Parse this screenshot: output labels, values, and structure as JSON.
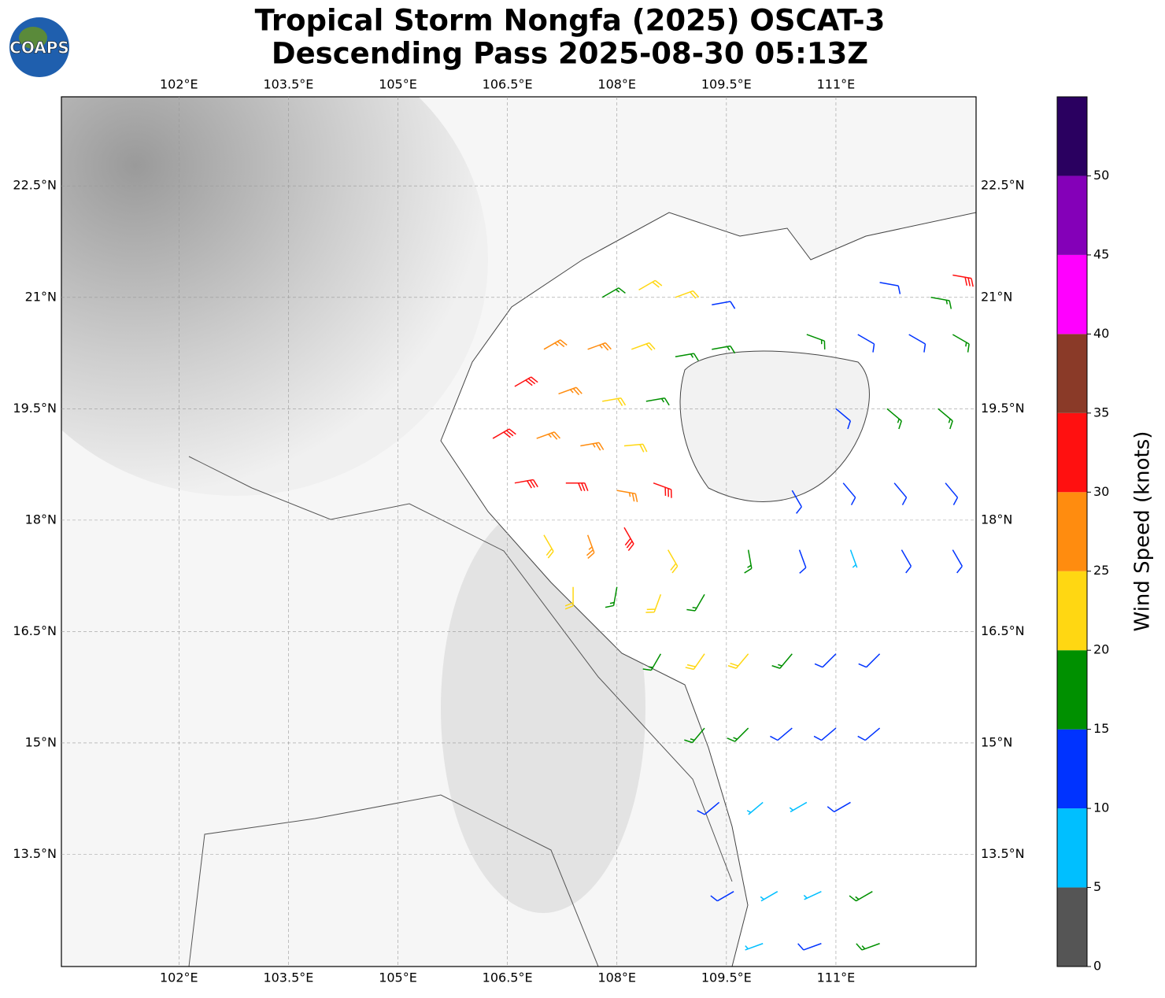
{
  "chart_data": {
    "type": "barbs",
    "logo": "COAPS",
    "title": "Tropical Storm Nongfa (2025) OSCAT-3",
    "subtitle": "Descending Pass 2025-08-30 05:13Z",
    "xlim": [
      100.39,
      112.92
    ],
    "ylim": [
      11.99,
      23.7
    ],
    "xticks": [
      {
        "value": 102,
        "label": "102°E"
      },
      {
        "value": 103.5,
        "label": "103.5°E"
      },
      {
        "value": 105,
        "label": "105°E"
      },
      {
        "value": 106.5,
        "label": "106.5°E"
      },
      {
        "value": 108,
        "label": "108°E"
      },
      {
        "value": 109.5,
        "label": "109.5°E"
      },
      {
        "value": 111,
        "label": "111°E"
      }
    ],
    "yticks": [
      {
        "value": 13.5,
        "label": "13.5°N"
      },
      {
        "value": 15,
        "label": "15°N"
      },
      {
        "value": 16.5,
        "label": "16.5°N"
      },
      {
        "value": 18,
        "label": "18°N"
      },
      {
        "value": 19.5,
        "label": "19.5°N"
      },
      {
        "value": 21,
        "label": "21°N"
      },
      {
        "value": 22.5,
        "label": "22.5°N"
      }
    ],
    "grid": true,
    "colorbar": {
      "label": "Wind Speed (knots)",
      "lim": [
        0,
        55
      ],
      "ticks": [
        0,
        5,
        10,
        15,
        20,
        25,
        30,
        35,
        40,
        45,
        50
      ],
      "bounds": [
        0,
        5,
        10,
        15,
        20,
        25,
        30,
        35,
        40,
        45,
        50,
        55
      ],
      "colors": [
        "#555555",
        "#00bfff",
        "#0033ff",
        "#009000",
        "#ffd712",
        "#ff8c0f",
        "#ff1010",
        "#8a3a28",
        "#ff00ff",
        "#8400b8",
        "#2a0060"
      ]
    },
    "barbs": [
      {
        "lon": 107.8,
        "lat": 21.0,
        "speed": 18,
        "dir": 60
      },
      {
        "lon": 108.3,
        "lat": 21.1,
        "speed": 22,
        "dir": 60
      },
      {
        "lon": 108.8,
        "lat": 21.0,
        "speed": 22,
        "dir": 70
      },
      {
        "lon": 109.3,
        "lat": 20.9,
        "speed": 14,
        "dir": 80
      },
      {
        "lon": 107.0,
        "lat": 20.3,
        "speed": 28,
        "dir": 60
      },
      {
        "lon": 107.6,
        "lat": 20.3,
        "speed": 27,
        "dir": 70
      },
      {
        "lon": 108.2,
        "lat": 20.3,
        "speed": 23,
        "dir": 70
      },
      {
        "lon": 108.8,
        "lat": 20.2,
        "speed": 18,
        "dir": 80
      },
      {
        "lon": 109.3,
        "lat": 20.3,
        "speed": 18,
        "dir": 80
      },
      {
        "lon": 106.6,
        "lat": 19.8,
        "speed": 32,
        "dir": 60
      },
      {
        "lon": 107.2,
        "lat": 19.7,
        "speed": 28,
        "dir": 70
      },
      {
        "lon": 107.8,
        "lat": 19.6,
        "speed": 23,
        "dir": 80
      },
      {
        "lon": 108.4,
        "lat": 19.6,
        "speed": 18,
        "dir": 80
      },
      {
        "lon": 106.3,
        "lat": 19.1,
        "speed": 33,
        "dir": 60
      },
      {
        "lon": 106.9,
        "lat": 19.1,
        "speed": 28,
        "dir": 70
      },
      {
        "lon": 107.5,
        "lat": 19.0,
        "speed": 27,
        "dir": 80
      },
      {
        "lon": 108.1,
        "lat": 19.0,
        "speed": 24,
        "dir": 85
      },
      {
        "lon": 106.6,
        "lat": 18.5,
        "speed": 33,
        "dir": 80
      },
      {
        "lon": 107.3,
        "lat": 18.5,
        "speed": 30,
        "dir": 90
      },
      {
        "lon": 108.0,
        "lat": 18.4,
        "speed": 28,
        "dir": 100
      },
      {
        "lon": 108.5,
        "lat": 18.5,
        "speed": 33,
        "dir": 110
      },
      {
        "lon": 107.0,
        "lat": 17.8,
        "speed": 22,
        "dir": 150
      },
      {
        "lon": 107.6,
        "lat": 17.8,
        "speed": 28,
        "dir": 160
      },
      {
        "lon": 108.1,
        "lat": 17.9,
        "speed": 31,
        "dir": 150
      },
      {
        "lon": 108.7,
        "lat": 17.6,
        "speed": 23,
        "dir": 150
      },
      {
        "lon": 107.4,
        "lat": 17.1,
        "speed": 22,
        "dir": 180
      },
      {
        "lon": 108.0,
        "lat": 17.1,
        "speed": 18,
        "dir": 190
      },
      {
        "lon": 108.6,
        "lat": 17.0,
        "speed": 23,
        "dir": 200
      },
      {
        "lon": 109.2,
        "lat": 17.0,
        "speed": 17,
        "dir": 210
      },
      {
        "lon": 108.6,
        "lat": 16.2,
        "speed": 17,
        "dir": 210
      },
      {
        "lon": 109.2,
        "lat": 16.2,
        "speed": 22,
        "dir": 215
      },
      {
        "lon": 109.8,
        "lat": 16.2,
        "speed": 22,
        "dir": 220
      },
      {
        "lon": 110.4,
        "lat": 16.2,
        "speed": 18,
        "dir": 220
      },
      {
        "lon": 111.0,
        "lat": 16.2,
        "speed": 13,
        "dir": 225
      },
      {
        "lon": 111.6,
        "lat": 16.2,
        "speed": 14,
        "dir": 225
      },
      {
        "lon": 109.2,
        "lat": 15.2,
        "speed": 18,
        "dir": 220
      },
      {
        "lon": 109.8,
        "lat": 15.2,
        "speed": 17,
        "dir": 225
      },
      {
        "lon": 110.4,
        "lat": 15.2,
        "speed": 14,
        "dir": 230
      },
      {
        "lon": 111.0,
        "lat": 15.2,
        "speed": 13,
        "dir": 230
      },
      {
        "lon": 111.6,
        "lat": 15.2,
        "speed": 12,
        "dir": 230
      },
      {
        "lon": 109.4,
        "lat": 14.2,
        "speed": 13,
        "dir": 230
      },
      {
        "lon": 110.0,
        "lat": 14.2,
        "speed": 9,
        "dir": 230
      },
      {
        "lon": 110.6,
        "lat": 14.2,
        "speed": 8,
        "dir": 240
      },
      {
        "lon": 111.2,
        "lat": 14.2,
        "speed": 12,
        "dir": 240
      },
      {
        "lon": 109.6,
        "lat": 13.0,
        "speed": 12,
        "dir": 240
      },
      {
        "lon": 110.2,
        "lat": 13.0,
        "speed": 8,
        "dir": 240
      },
      {
        "lon": 110.8,
        "lat": 13.0,
        "speed": 9,
        "dir": 245
      },
      {
        "lon": 111.5,
        "lat": 13.0,
        "speed": 17,
        "dir": 240
      },
      {
        "lon": 110.0,
        "lat": 12.3,
        "speed": 7,
        "dir": 250
      },
      {
        "lon": 110.8,
        "lat": 12.3,
        "speed": 14,
        "dir": 250
      },
      {
        "lon": 111.6,
        "lat": 12.3,
        "speed": 18,
        "dir": 250
      },
      {
        "lon": 110.6,
        "lat": 20.5,
        "speed": 17,
        "dir": 110
      },
      {
        "lon": 111.3,
        "lat": 20.5,
        "speed": 14,
        "dir": 120
      },
      {
        "lon": 112.0,
        "lat": 20.5,
        "speed": 13,
        "dir": 120
      },
      {
        "lon": 112.6,
        "lat": 20.5,
        "speed": 15,
        "dir": 120
      },
      {
        "lon": 111.0,
        "lat": 19.5,
        "speed": 14,
        "dir": 130
      },
      {
        "lon": 111.7,
        "lat": 19.5,
        "speed": 16,
        "dir": 130
      },
      {
        "lon": 112.4,
        "lat": 19.5,
        "speed": 17,
        "dir": 130
      },
      {
        "lon": 110.4,
        "lat": 18.4,
        "speed": 14,
        "dir": 150
      },
      {
        "lon": 111.1,
        "lat": 18.5,
        "speed": 13,
        "dir": 140
      },
      {
        "lon": 111.8,
        "lat": 18.5,
        "speed": 12,
        "dir": 140
      },
      {
        "lon": 112.5,
        "lat": 18.5,
        "speed": 13,
        "dir": 140
      },
      {
        "lon": 109.8,
        "lat": 17.6,
        "speed": 17,
        "dir": 170
      },
      {
        "lon": 110.5,
        "lat": 17.6,
        "speed": 14,
        "dir": 160
      },
      {
        "lon": 111.2,
        "lat": 17.6,
        "speed": 9,
        "dir": 160
      },
      {
        "lon": 111.9,
        "lat": 17.6,
        "speed": 13,
        "dir": 150
      },
      {
        "lon": 112.6,
        "lat": 17.6,
        "speed": 14,
        "dir": 150
      },
      {
        "lon": 111.6,
        "lat": 21.2,
        "speed": 14,
        "dir": 100
      },
      {
        "lon": 112.3,
        "lat": 21.0,
        "speed": 16,
        "dir": 100
      },
      {
        "lon": 112.6,
        "lat": 21.3,
        "speed": 31,
        "dir": 100
      }
    ]
  }
}
